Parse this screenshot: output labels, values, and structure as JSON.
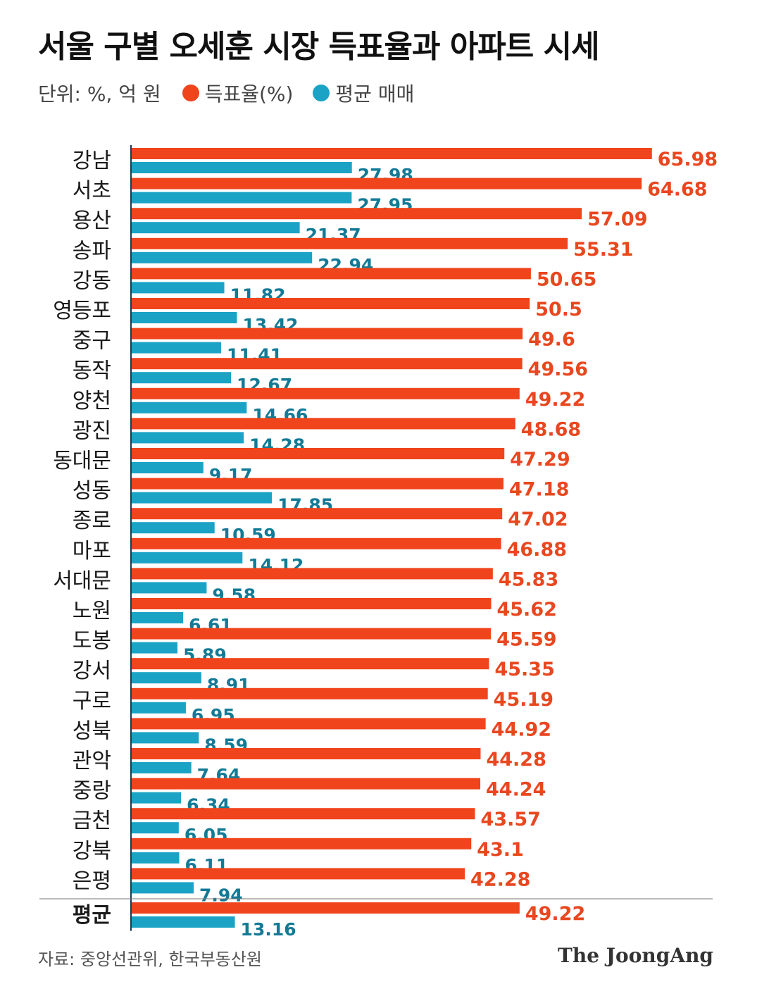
{
  "header": {
    "title": "서울 구별 오세훈 시장 득표율과 아파트 시세",
    "unit": "단위: %, 억 원",
    "legend_vote": "득표율(%)",
    "legend_price": "평균 매매"
  },
  "colors": {
    "vote": "#f0441c",
    "vote_label": "#e8471f",
    "price": "#1ba3c6",
    "price_label": "#137a96",
    "axis": "#1b3a52"
  },
  "chart_data": {
    "type": "bar",
    "orientation": "horizontal",
    "categories": [
      "강남",
      "서초",
      "용산",
      "송파",
      "강동",
      "영등포",
      "중구",
      "동작",
      "양천",
      "광진",
      "동대문",
      "성동",
      "종로",
      "마포",
      "서대문",
      "노원",
      "도봉",
      "강서",
      "구로",
      "성북",
      "관악",
      "중랑",
      "금천",
      "강북",
      "은평",
      "평균"
    ],
    "series": [
      {
        "name": "득표율(%)",
        "values": [
          65.98,
          64.68,
          57.09,
          55.31,
          50.65,
          50.5,
          49.6,
          49.56,
          49.22,
          48.68,
          47.29,
          47.18,
          47.02,
          46.88,
          45.83,
          45.62,
          45.59,
          45.35,
          45.19,
          44.92,
          44.28,
          44.24,
          43.57,
          43.1,
          42.28,
          49.22
        ],
        "labels": [
          "65.98",
          "64.68",
          "57.09",
          "55.31",
          "50.65",
          "50.5",
          "49.6",
          "49.56",
          "49.22",
          "48.68",
          "47.29",
          "47.18",
          "47.02",
          "46.88",
          "45.83",
          "45.62",
          "45.59",
          "45.35",
          "45.19",
          "44.92",
          "44.28",
          "44.24",
          "43.57",
          "43.1",
          "42.28",
          "49.22"
        ]
      },
      {
        "name": "평균 매매",
        "values": [
          27.98,
          27.95,
          21.37,
          22.94,
          11.82,
          13.42,
          11.41,
          12.67,
          14.66,
          14.28,
          9.17,
          17.85,
          10.59,
          14.12,
          9.58,
          6.61,
          5.89,
          8.91,
          6.95,
          8.59,
          7.64,
          6.34,
          6.05,
          6.11,
          7.94,
          13.16
        ],
        "labels": [
          "27.98",
          "27.95",
          "21.37",
          "22.94",
          "11.82",
          "13.42",
          "11.41",
          "12.67",
          "14.66",
          "14.28",
          "9.17",
          "17.85",
          "10.59",
          "14.12",
          "9.58",
          "6.61",
          "5.89",
          "8.91",
          "6.95",
          "8.59",
          "7.64",
          "6.34",
          "6.05",
          "6.11",
          "7.94",
          "13.16"
        ]
      }
    ],
    "xlim": [
      0,
      66
    ],
    "grid": false
  },
  "footer": {
    "source": "자료: 중앙선관위, 한국부동산원",
    "logo": "The JoongAng"
  }
}
